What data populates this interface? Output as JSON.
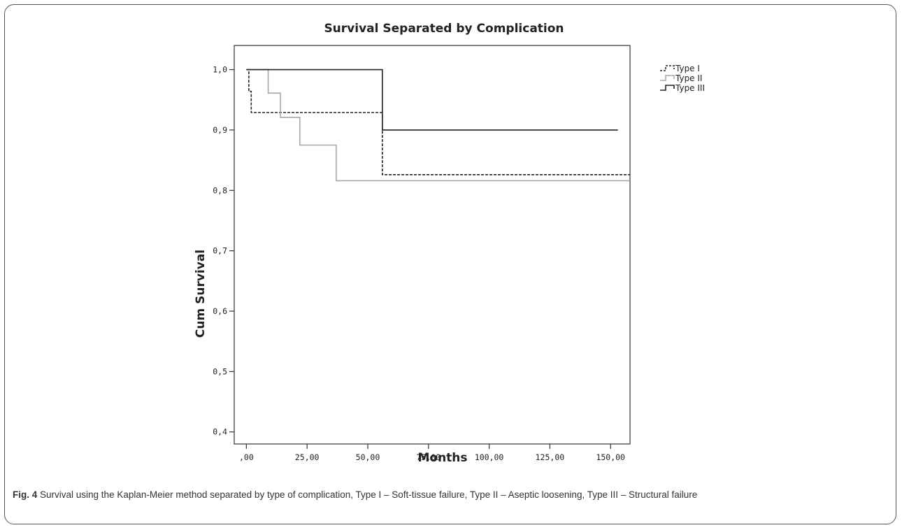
{
  "chart_data": {
    "type": "line",
    "subtype": "kaplan-meier-step",
    "title": "Survival Separated by Complication",
    "xlabel": "Months",
    "ylabel": "Cum Survival",
    "xlim": [
      -5,
      158
    ],
    "ylim": [
      0.38,
      1.04
    ],
    "x_ticks": [
      0,
      25,
      50,
      75,
      100,
      125,
      150
    ],
    "x_tick_labels": [
      ",00",
      "25,00",
      "50,00",
      "75,00",
      "100,00",
      "125,00",
      "150,00"
    ],
    "y_ticks": [
      0.4,
      0.5,
      0.6,
      0.7,
      0.8,
      0.9,
      1.0
    ],
    "y_tick_labels": [
      "0,4",
      "0,5",
      "0,6",
      "0,7",
      "0,8",
      "0,9",
      "1,0"
    ],
    "grid": false,
    "legend_position": "top-right, outside plot",
    "series": [
      {
        "name": "Type I",
        "color": "#222222",
        "dash": "dashed",
        "x": [
          0,
          1,
          2,
          56,
          158
        ],
        "y": [
          1.0,
          0.964,
          0.929,
          0.826,
          0.826
        ]
      },
      {
        "name": "Type II",
        "color": "#a8a8a8",
        "dash": "solid",
        "x": [
          0,
          9,
          14,
          22,
          37,
          158
        ],
        "y": [
          1.0,
          0.961,
          0.921,
          0.875,
          0.816,
          0.816
        ]
      },
      {
        "name": "Type III",
        "color": "#222222",
        "dash": "solid",
        "x": [
          0,
          56,
          153
        ],
        "y": [
          1.0,
          0.9,
          0.9
        ]
      }
    ]
  },
  "caption": {
    "label": "Fig. 4",
    "text": " Survival using the Kaplan-Meier method separated by type of complication, Type I – Soft-tissue failure, Type II – Aseptic loosening, Type III – Structural failure"
  }
}
